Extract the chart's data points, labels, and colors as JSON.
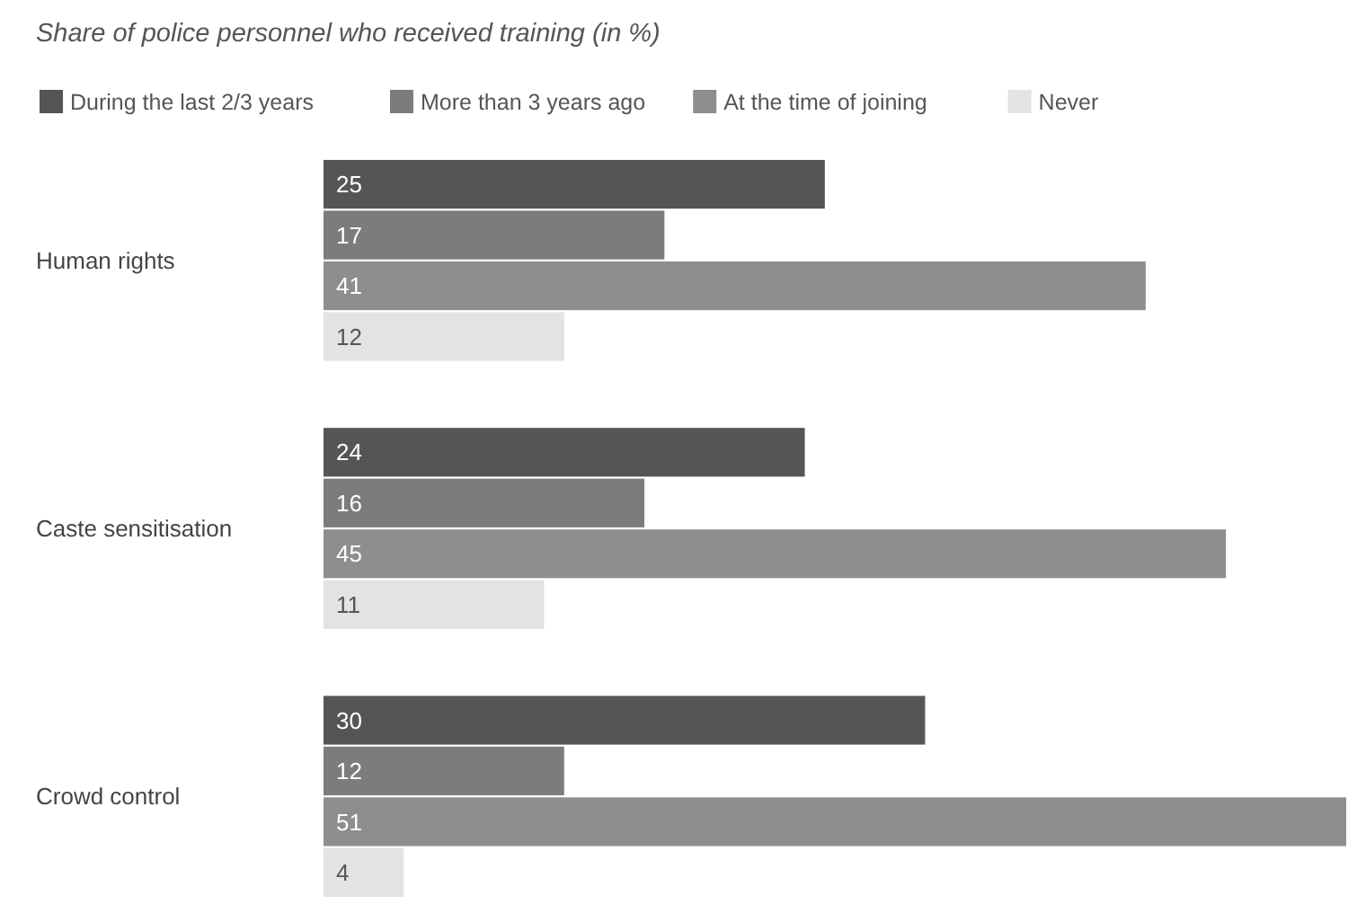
{
  "chart_data": {
    "type": "bar",
    "orientation": "horizontal",
    "title": "Share of police personnel who received training (in %)",
    "categories": [
      "Human rights",
      "Caste sensitisation",
      "Crowd control"
    ],
    "series": [
      {
        "name": "During the last 2/3 years",
        "color": "#555555",
        "values": [
          25,
          24,
          30
        ]
      },
      {
        "name": "More than 3 years ago",
        "color": "#7c7c7c",
        "values": [
          17,
          16,
          12
        ]
      },
      {
        "name": "At the time of joining",
        "color": "#8e8e8e",
        "values": [
          41,
          45,
          51
        ]
      },
      {
        "name": "Never",
        "color": "#e3e3e3",
        "values": [
          12,
          11,
          4
        ]
      }
    ],
    "data_labels": true,
    "legend": "top left"
  }
}
